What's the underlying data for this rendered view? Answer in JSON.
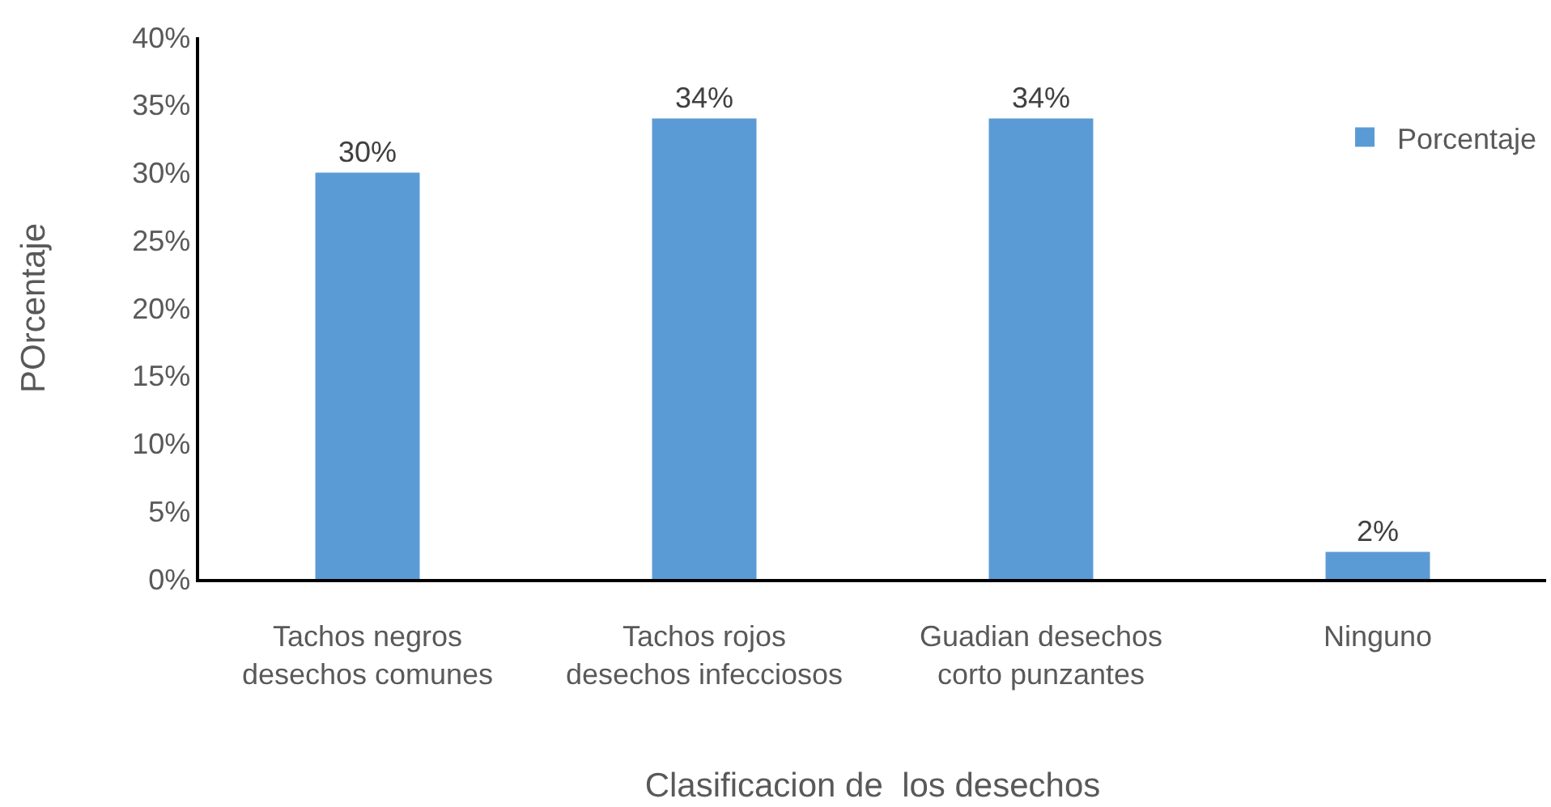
{
  "chart_data": {
    "type": "bar",
    "xlabel": "Clasificacion de  los desechos",
    "ylabel": "POrcentaje",
    "categories": [
      "Tachos negros desechos comunes",
      "Tachos rojos desechos infecciosos",
      "Guadian desechos corto punzantes",
      "Ninguno"
    ],
    "series": [
      {
        "name": "Porcentaje",
        "color": "#5b9bd5",
        "values": [
          30,
          34,
          34,
          2
        ],
        "value_labels": [
          "30%",
          "34%",
          "34%",
          "2%"
        ]
      }
    ],
    "ylim": [
      0,
      40
    ],
    "yticks": [
      {
        "value": 0,
        "label": "0%"
      },
      {
        "value": 5,
        "label": "5%"
      },
      {
        "value": 10,
        "label": "10%"
      },
      {
        "value": 15,
        "label": "15%"
      },
      {
        "value": 20,
        "label": "20%"
      },
      {
        "value": 25,
        "label": "25%"
      },
      {
        "value": 30,
        "label": "30%"
      },
      {
        "value": 35,
        "label": "35%"
      },
      {
        "value": 40,
        "label": "40%"
      }
    ],
    "grid": false,
    "legend": "top right"
  }
}
